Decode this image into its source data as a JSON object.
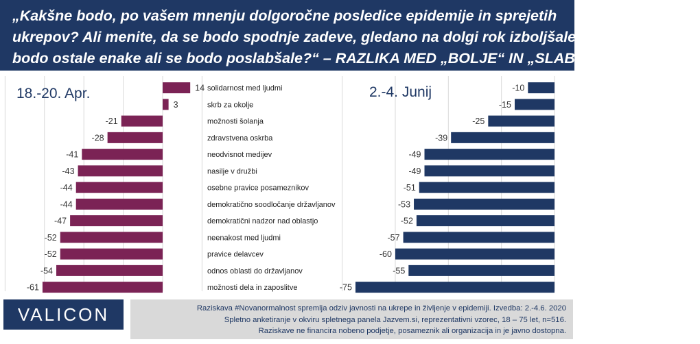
{
  "header": {
    "title_lines": [
      "„Kakšne bodo, po vašem mnenju dolgoročne posledice epidemije in sprejetih",
      "ukrepov? Ali menite, da se bodo spodnje zadeve, gledano na dolgi rok izboljšale,",
      "bodo ostale enake ali se bodo poslabšale?“ – RAZLIKA MED „BOLJE“ IN „SLABŠE“"
    ]
  },
  "colors": {
    "april": "#7b2355",
    "june": "#1f3864",
    "title_bg": "#1f3864",
    "footer_bg": "#d9d9d9",
    "grid": "#d9d9d9"
  },
  "chart_data": [
    {
      "type": "bar",
      "orientation": "horizontal",
      "title": "18.-20. Apr.",
      "categories": [
        "solidarnost med ljudmi",
        "skrb za okolje",
        "možnosti šolanja",
        "zdravstvena oskrba",
        "neodvisnot medijev",
        "nasilje v družbi",
        "osebne pravice posameznikov",
        "demokratično soodločanje državljanov",
        "demokratični nadzor nad oblastjo",
        "neenakost med ljudmi",
        "pravice delavcev",
        "odnos oblasti do državljanov",
        "možnosti dela in zaposlitve"
      ],
      "values": [
        14,
        3,
        -21,
        -28,
        -41,
        -43,
        -44,
        -44,
        -47,
        -52,
        -52,
        -54,
        -61
      ],
      "xlim": [
        -80,
        20
      ]
    },
    {
      "type": "bar",
      "orientation": "horizontal",
      "title": "2.-4. Junij",
      "categories": [
        "solidarnost med ljudmi",
        "skrb za okolje",
        "možnosti šolanja",
        "zdravstvena oskrba",
        "neodvisnot medijev",
        "nasilje v družbi",
        "osebne pravice posameznikov",
        "demokratično soodločanje državljanov",
        "demokratični nadzor nad oblastjo",
        "neenakost med ljudmi",
        "pravice delavcev",
        "odnos oblasti do državljanov",
        "možnosti dela in zaposlitve"
      ],
      "values": [
        -10,
        -15,
        -25,
        -39,
        -49,
        -49,
        -51,
        -53,
        -52,
        -57,
        -60,
        -55,
        -75
      ],
      "xlim": [
        -80,
        0
      ]
    }
  ],
  "logo": {
    "text": "VALICON"
  },
  "footer": {
    "lines": [
      "Raziskava #Novanormalnost spremlja odziv javnosti na ukrepe in življenje v epidemiji. Izvedba: 2.-4.6. 2020",
      "Spletno anketiranje v okviru spletnega panela Jazvem.si, reprezentativni vzorec, 18 – 75 let, n=516.",
      "Raziskave ne financira nobeno podjetje, posameznik ali organizacija in je javno dostopna."
    ]
  }
}
